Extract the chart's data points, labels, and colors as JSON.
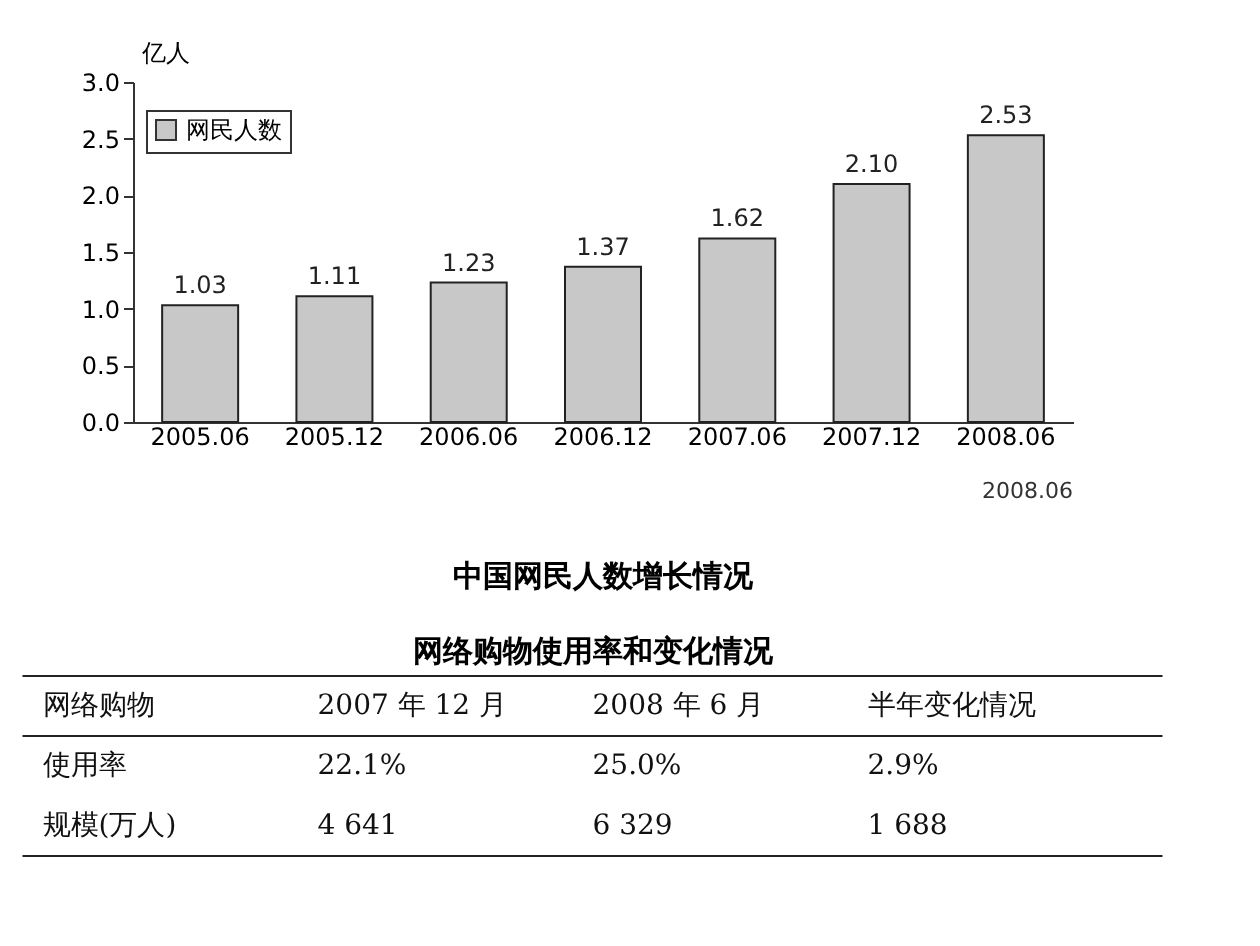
{
  "chart_data": [
    {
      "type": "bar",
      "title": "中国网民人数增长情况",
      "ylabel": "亿人",
      "categories": [
        "2005.06",
        "2005.12",
        "2006.06",
        "2006.12",
        "2007.06",
        "2007.12",
        "2008.06"
      ],
      "series": [
        {
          "name": "网民人数",
          "color": "#c8c8c8",
          "values": [
            1.03,
            1.11,
            1.23,
            1.37,
            1.62,
            2.1,
            2.53
          ]
        }
      ],
      "ylim": [
        0,
        3.0
      ],
      "yticks": [
        {
          "value": 0,
          "label": "0.0"
        },
        {
          "value": 0.5,
          "label": "0.5"
        },
        {
          "value": 1.0,
          "label": "1.0"
        },
        {
          "value": 1.5,
          "label": "1.5"
        },
        {
          "value": 2.0,
          "label": "2.0"
        },
        {
          "value": 2.5,
          "label": "2.5"
        },
        {
          "value": 3.0,
          "label": "3.0"
        }
      ],
      "value_labels": [
        "1.03",
        "1.11",
        "1.23",
        "1.37",
        "1.62",
        "2.10",
        "2.53"
      ],
      "grid": false,
      "legend": "top left",
      "annotations": [
        "2008.06"
      ]
    },
    {
      "type": "other",
      "title": "网络购物使用率和变化情况",
      "annotations": [
        "网络购物",
        "2007 年 12 月",
        "2008 年 6 月",
        "半年变化情况",
        "使用率",
        "22.1%",
        "25.0%",
        "2.9%",
        "规模(万人)",
        "4 641",
        "6 329",
        "1 688"
      ]
    }
  ]
}
